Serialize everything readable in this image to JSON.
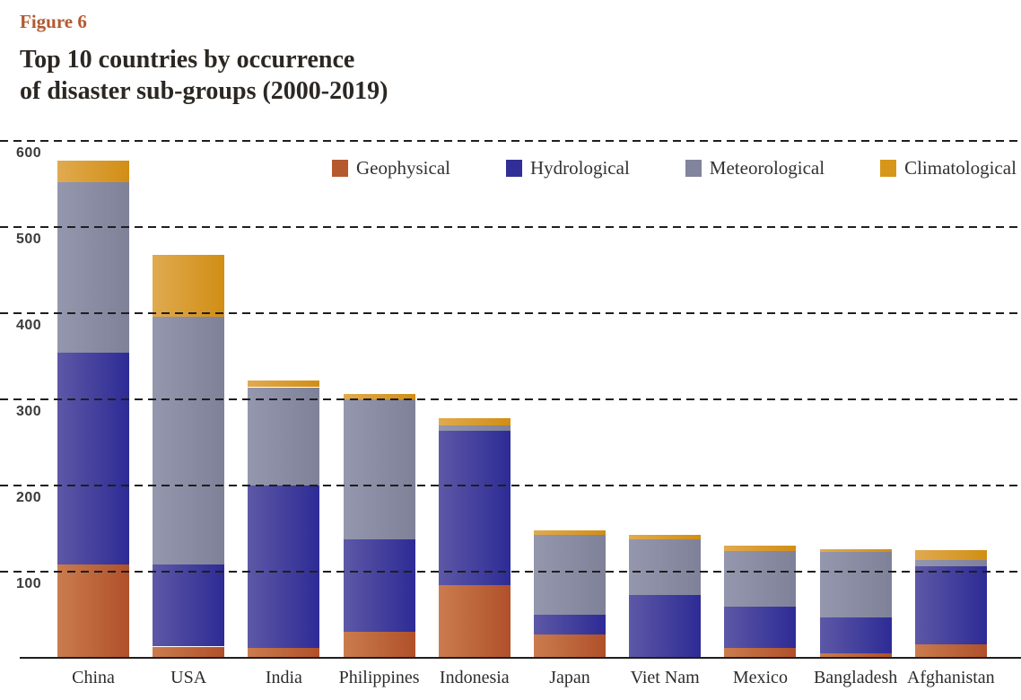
{
  "figure_label": "Figure 6",
  "title_line1": "Top 10 countries by occurrence",
  "title_line2": "of disaster sub-groups (2000-2019)",
  "chart_data": {
    "type": "bar",
    "stacked": true,
    "title": "Top 10 countries by occurrence of disaster sub-groups (2000-2019)",
    "categories": [
      "China",
      "USA",
      "India",
      "Philippines",
      "Indonesia",
      "Japan",
      "Viet Nam",
      "Mexico",
      "Bangladesh",
      "Afghanistan"
    ],
    "series": [
      {
        "name": "Geophysical",
        "key": "geophysical",
        "color_from": "#ca7c4e",
        "color_to": "#b0502a",
        "legend_color": "#b5592f",
        "values": [
          107,
          12,
          10,
          29,
          83,
          26,
          0,
          10,
          4,
          15
        ]
      },
      {
        "name": "Hydrological",
        "key": "hydrological",
        "color_from": "#5d58a6",
        "color_to": "#2d2b95",
        "legend_color": "#312e97",
        "values": [
          246,
          95,
          189,
          108,
          180,
          23,
          72,
          48,
          42,
          90
        ]
      },
      {
        "name": "Meteorological",
        "key": "meteorological",
        "color_from": "#9497ad",
        "color_to": "#7f8199",
        "legend_color": "#82849d",
        "values": [
          198,
          288,
          114,
          162,
          6,
          93,
          64,
          65,
          76,
          8
        ]
      },
      {
        "name": "Climatological",
        "key": "climatological",
        "color_from": "#e0aa50",
        "color_to": "#d18e14",
        "legend_color": "#d6961a",
        "values": [
          25,
          72,
          8,
          6,
          8,
          5,
          6,
          6,
          3,
          11
        ]
      }
    ],
    "totals": [
      576,
      467,
      321,
      305,
      277,
      147,
      142,
      129,
      125,
      124
    ],
    "ylim": [
      0,
      600
    ],
    "yticks": [
      600,
      500,
      400,
      300,
      200,
      100
    ],
    "grid": "dashed-horizontal",
    "legend_position": "top-right",
    "xlabel": "",
    "ylabel": ""
  },
  "text_colors": {
    "figure_label": "#b25931",
    "title": "#2b2723",
    "axis_tick": "#3a3a3a"
  }
}
